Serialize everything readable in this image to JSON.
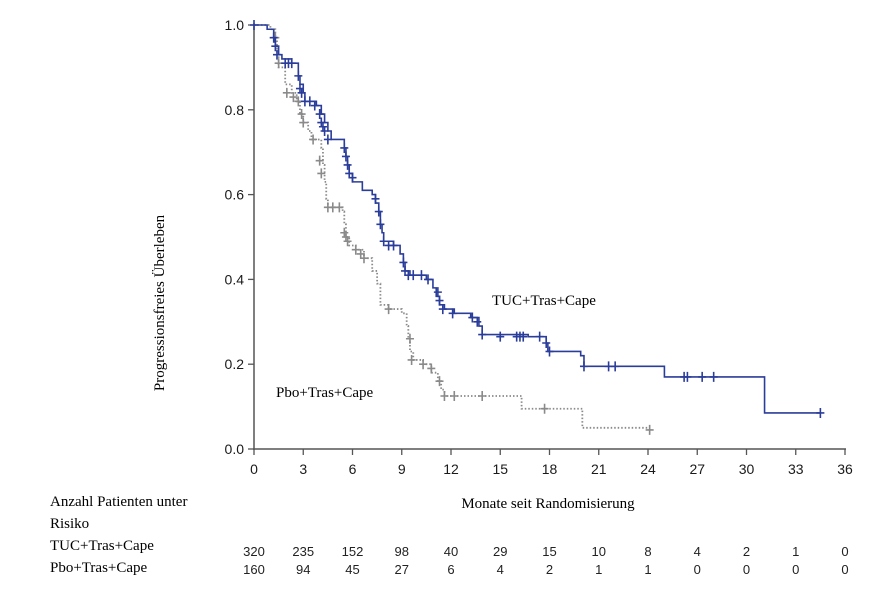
{
  "chart_data": {
    "type": "line",
    "subtype": "kaplan-meier",
    "title": "",
    "xlabel": "Monate seit Randomisierung",
    "ylabel": "Progressionsfreies Überleben",
    "xlim": [
      0,
      36
    ],
    "ylim": [
      0.0,
      1.0
    ],
    "x_ticks": [
      0,
      3,
      6,
      9,
      12,
      15,
      18,
      21,
      24,
      27,
      30,
      33,
      36
    ],
    "x_tick_labels": [
      "0",
      "3",
      "6",
      "9",
      "12",
      "15",
      "18",
      "21",
      "24",
      "27",
      "30",
      "33",
      "36"
    ],
    "y_ticks": [
      0.0,
      0.2,
      0.4,
      0.6,
      0.8,
      1.0
    ],
    "y_tick_labels": [
      "0.0",
      "0.2",
      "0.4",
      "0.6",
      "0.8",
      "1.0"
    ],
    "grid": false,
    "series": [
      {
        "name": "TUC+Tras+Cape",
        "label": "TUC+Tras+Cape",
        "color": "#2b3d9a",
        "style": "solid",
        "steps": [
          [
            0,
            1.0
          ],
          [
            0.8,
            0.99
          ],
          [
            1.2,
            0.97
          ],
          [
            1.3,
            0.95
          ],
          [
            1.5,
            0.93
          ],
          [
            1.7,
            0.92
          ],
          [
            2.3,
            0.91
          ],
          [
            2.7,
            0.88
          ],
          [
            2.8,
            0.86
          ],
          [
            3.0,
            0.84
          ],
          [
            3.1,
            0.82
          ],
          [
            3.8,
            0.81
          ],
          [
            4.1,
            0.79
          ],
          [
            4.3,
            0.77
          ],
          [
            4.5,
            0.75
          ],
          [
            4.7,
            0.73
          ],
          [
            5.5,
            0.71
          ],
          [
            5.6,
            0.69
          ],
          [
            5.7,
            0.67
          ],
          [
            5.8,
            0.65
          ],
          [
            6.0,
            0.63
          ],
          [
            6.6,
            0.61
          ],
          [
            7.2,
            0.6
          ],
          [
            7.4,
            0.58
          ],
          [
            7.6,
            0.56
          ],
          [
            7.7,
            0.53
          ],
          [
            7.8,
            0.51
          ],
          [
            7.9,
            0.49
          ],
          [
            8.5,
            0.48
          ],
          [
            8.9,
            0.46
          ],
          [
            9.1,
            0.44
          ],
          [
            9.2,
            0.42
          ],
          [
            9.5,
            0.41
          ],
          [
            10.5,
            0.4
          ],
          [
            10.9,
            0.38
          ],
          [
            11.1,
            0.36
          ],
          [
            11.3,
            0.34
          ],
          [
            11.6,
            0.33
          ],
          [
            12.2,
            0.32
          ],
          [
            13.2,
            0.31
          ],
          [
            13.7,
            0.29
          ],
          [
            13.9,
            0.27
          ],
          [
            16.7,
            0.265
          ],
          [
            17.8,
            0.25
          ],
          [
            17.9,
            0.23
          ],
          [
            19.9,
            0.22
          ],
          [
            20.1,
            0.195
          ],
          [
            25.0,
            0.17
          ],
          [
            31.1,
            0.085
          ],
          [
            34.5,
            0.085
          ]
        ],
        "censored": [
          [
            0,
            1.0
          ],
          [
            1.2,
            0.97
          ],
          [
            1.3,
            0.95
          ],
          [
            1.4,
            0.93
          ],
          [
            1.9,
            0.91
          ],
          [
            2.1,
            0.91
          ],
          [
            2.3,
            0.91
          ],
          [
            2.7,
            0.88
          ],
          [
            2.8,
            0.85
          ],
          [
            2.9,
            0.84
          ],
          [
            3.1,
            0.82
          ],
          [
            3.4,
            0.82
          ],
          [
            3.7,
            0.81
          ],
          [
            4.0,
            0.79
          ],
          [
            4.1,
            0.77
          ],
          [
            4.2,
            0.76
          ],
          [
            4.3,
            0.75
          ],
          [
            4.5,
            0.73
          ],
          [
            5.5,
            0.71
          ],
          [
            5.6,
            0.69
          ],
          [
            5.7,
            0.67
          ],
          [
            5.8,
            0.65
          ],
          [
            6.0,
            0.64
          ],
          [
            7.4,
            0.59
          ],
          [
            7.6,
            0.56
          ],
          [
            7.7,
            0.53
          ],
          [
            7.9,
            0.49
          ],
          [
            8.2,
            0.48
          ],
          [
            8.5,
            0.48
          ],
          [
            9.1,
            0.44
          ],
          [
            9.2,
            0.42
          ],
          [
            9.4,
            0.41
          ],
          [
            9.7,
            0.41
          ],
          [
            10.2,
            0.41
          ],
          [
            10.6,
            0.4
          ],
          [
            11.2,
            0.37
          ],
          [
            11.3,
            0.35
          ],
          [
            11.5,
            0.33
          ],
          [
            12.1,
            0.32
          ],
          [
            13.3,
            0.31
          ],
          [
            13.6,
            0.3
          ],
          [
            13.9,
            0.27
          ],
          [
            15.0,
            0.265
          ],
          [
            16.0,
            0.265
          ],
          [
            16.2,
            0.265
          ],
          [
            16.4,
            0.265
          ],
          [
            17.4,
            0.265
          ],
          [
            17.8,
            0.25
          ],
          [
            18.0,
            0.23
          ],
          [
            20.1,
            0.195
          ],
          [
            21.6,
            0.195
          ],
          [
            22.0,
            0.195
          ],
          [
            26.2,
            0.17
          ],
          [
            26.4,
            0.17
          ],
          [
            27.3,
            0.17
          ],
          [
            28.0,
            0.17
          ],
          [
            34.5,
            0.085
          ]
        ]
      },
      {
        "name": "Pbo+Tras+Cape",
        "label": "Pbo+Tras+Cape",
        "color": "#8a8a8a",
        "style": "dotted",
        "steps": [
          [
            0,
            1.0
          ],
          [
            1.0,
            0.99
          ],
          [
            1.3,
            0.97
          ],
          [
            1.4,
            0.93
          ],
          [
            1.5,
            0.9
          ],
          [
            1.9,
            0.86
          ],
          [
            2.3,
            0.84
          ],
          [
            2.6,
            0.82
          ],
          [
            2.8,
            0.79
          ],
          [
            3.0,
            0.77
          ],
          [
            3.3,
            0.75
          ],
          [
            3.5,
            0.73
          ],
          [
            4.1,
            0.71
          ],
          [
            4.2,
            0.67
          ],
          [
            4.3,
            0.63
          ],
          [
            4.4,
            0.59
          ],
          [
            4.5,
            0.57
          ],
          [
            5.4,
            0.56
          ],
          [
            5.5,
            0.53
          ],
          [
            5.6,
            0.5
          ],
          [
            5.8,
            0.48
          ],
          [
            6.2,
            0.47
          ],
          [
            6.7,
            0.45
          ],
          [
            7.2,
            0.42
          ],
          [
            7.5,
            0.39
          ],
          [
            7.7,
            0.34
          ],
          [
            8.2,
            0.33
          ],
          [
            9.0,
            0.32
          ],
          [
            9.3,
            0.29
          ],
          [
            9.4,
            0.26
          ],
          [
            9.5,
            0.23
          ],
          [
            9.7,
            0.21
          ],
          [
            10.3,
            0.2
          ],
          [
            10.8,
            0.18
          ],
          [
            11.2,
            0.16
          ],
          [
            11.4,
            0.14
          ],
          [
            11.6,
            0.125
          ],
          [
            16.3,
            0.095
          ],
          [
            20.0,
            0.05
          ],
          [
            24.1,
            0.05
          ]
        ],
        "censored": [
          [
            1.3,
            0.97
          ],
          [
            1.5,
            0.91
          ],
          [
            2.0,
            0.84
          ],
          [
            2.4,
            0.83
          ],
          [
            2.7,
            0.82
          ],
          [
            2.9,
            0.79
          ],
          [
            3.0,
            0.77
          ],
          [
            3.6,
            0.73
          ],
          [
            4.0,
            0.68
          ],
          [
            4.1,
            0.65
          ],
          [
            4.5,
            0.57
          ],
          [
            4.8,
            0.57
          ],
          [
            5.2,
            0.57
          ],
          [
            5.5,
            0.51
          ],
          [
            5.6,
            0.5
          ],
          [
            5.7,
            0.49
          ],
          [
            6.2,
            0.47
          ],
          [
            6.5,
            0.46
          ],
          [
            6.7,
            0.45
          ],
          [
            8.2,
            0.33
          ],
          [
            9.5,
            0.26
          ],
          [
            9.6,
            0.21
          ],
          [
            10.3,
            0.2
          ],
          [
            10.8,
            0.19
          ],
          [
            11.3,
            0.16
          ],
          [
            11.6,
            0.125
          ],
          [
            12.2,
            0.125
          ],
          [
            13.9,
            0.125
          ],
          [
            17.7,
            0.095
          ],
          [
            24.1,
            0.045
          ]
        ]
      }
    ],
    "annotations": [
      "TUC+Tras+Cape",
      "Pbo+Tras+Cape"
    ],
    "risk_table": {
      "header_line1": "Anzahl Patienten unter",
      "header_line2": "Risiko",
      "time_points": [
        0,
        3,
        6,
        9,
        12,
        15,
        18,
        21,
        24,
        27,
        30,
        33,
        36
      ],
      "rows": [
        {
          "label": "TUC+Tras+Cape",
          "values": [
            "320",
            "235",
            "152",
            "98",
            "40",
            "29",
            "15",
            "10",
            "8",
            "4",
            "2",
            "1",
            "0"
          ]
        },
        {
          "label": "Pbo+Tras+Cape",
          "values": [
            "160",
            "94",
            "45",
            "27",
            "6",
            "4",
            "2",
            "1",
            "1",
            "0",
            "0",
            "0",
            "0"
          ]
        }
      ]
    }
  }
}
